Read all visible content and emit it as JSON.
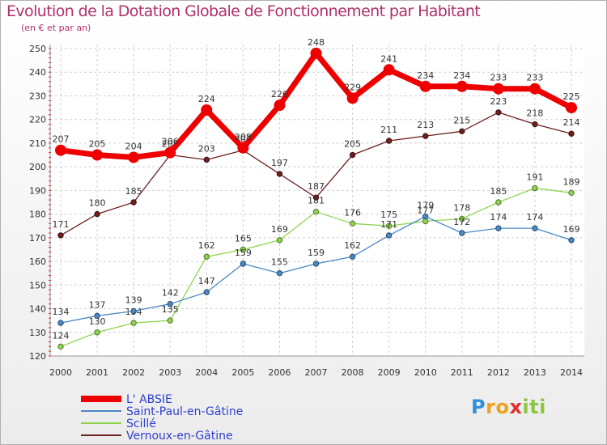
{
  "chart_data": {
    "type": "line",
    "title": "Evolution de la Dotation Globale de Fonctionnement par Habitant",
    "subtitle": "(en € et par an)",
    "xlabel": "",
    "ylabel": "",
    "categories": [
      "2000",
      "2001",
      "2002",
      "2003",
      "2004",
      "2005",
      "2006",
      "2007",
      "2008",
      "2009",
      "2010",
      "2011",
      "2012",
      "2013",
      "2014"
    ],
    "ylim": [
      120,
      250
    ],
    "yticks": [
      120,
      130,
      140,
      150,
      160,
      170,
      180,
      190,
      200,
      210,
      220,
      230,
      240,
      250
    ],
    "grid": true,
    "legend_position": "bottom-left",
    "series": [
      {
        "name": "Vernoux-en-Gâtine",
        "color": "#6e1f1f",
        "values": [
          171,
          180,
          185,
          205,
          203,
          207,
          197,
          187,
          205,
          211,
          213,
          215,
          223,
          218,
          214
        ],
        "labels": [
          "171",
          "180",
          "185",
          "205",
          "203",
          "207",
          "197",
          "187",
          "205",
          "211",
          "213",
          "215",
          "223",
          "218",
          "214"
        ]
      },
      {
        "name": "Scillé",
        "color": "#8fd34f",
        "values": [
          124,
          130,
          134,
          135,
          162,
          165,
          169,
          181,
          176,
          175,
          177,
          178,
          185,
          191,
          189
        ],
        "labels": [
          "124",
          "130",
          "134",
          "135",
          "162",
          "165",
          "169",
          "181",
          "176",
          "175",
          "177",
          "178",
          "185",
          "191",
          "189"
        ]
      },
      {
        "name": "Saint-Paul-en-Gâtine",
        "color": "#4a88c4",
        "values": [
          134,
          137,
          139,
          142,
          147,
          159,
          155,
          159,
          162,
          171,
          179,
          172,
          174,
          174,
          169
        ],
        "labels": [
          "134",
          "137",
          "139",
          "142",
          "147",
          "159",
          "155",
          "159",
          "162",
          "171",
          "179",
          "172",
          "174",
          "174",
          "169"
        ]
      },
      {
        "name": "L' ABSIE",
        "color": "#ee0000",
        "values": [
          207,
          205,
          204,
          206,
          224,
          208,
          226,
          248,
          229,
          241,
          234,
          234,
          233,
          233,
          225
        ],
        "labels": [
          "207",
          "205",
          "204",
          "206",
          "224",
          "208",
          "226",
          "248",
          "229",
          "241",
          "234",
          "234",
          "233",
          "233",
          "225"
        ]
      }
    ]
  },
  "legend": [
    {
      "name": "L' ABSIE",
      "color": "#ee0000"
    },
    {
      "name": "Saint-Paul-en-Gâtine",
      "color": "#4a88c4"
    },
    {
      "name": "Scillé",
      "color": "#8fd34f"
    },
    {
      "name": "Vernoux-en-Gâtine",
      "color": "#6e1f1f"
    }
  ],
  "logo": {
    "letters": [
      "P",
      "r",
      "o",
      "x",
      "i",
      "t",
      "i"
    ],
    "colors": [
      "#2f8fd8",
      "#f0a020",
      "#f0a020",
      "#e03030",
      "#8cc63f",
      "#8cc63f",
      "#8cc63f"
    ],
    "alt": "Proxiti"
  }
}
